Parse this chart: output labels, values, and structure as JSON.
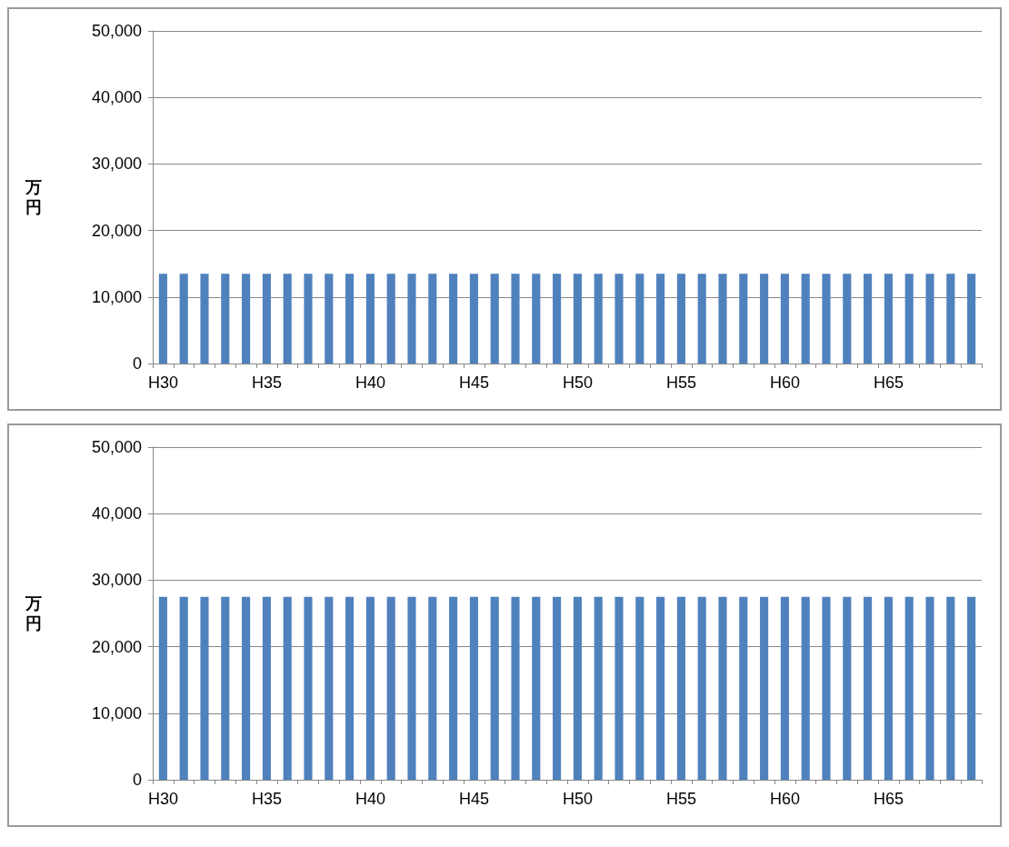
{
  "chart_data": [
    {
      "type": "bar",
      "ylabel": "万円",
      "categories": [
        "H30",
        null,
        null,
        null,
        null,
        "H35",
        null,
        null,
        null,
        null,
        "H40",
        null,
        null,
        null,
        null,
        "H45",
        null,
        null,
        null,
        null,
        "H50",
        null,
        null,
        null,
        null,
        "H55",
        null,
        null,
        null,
        null,
        "H60",
        null,
        null,
        null,
        null,
        "H65",
        null,
        null,
        null,
        null
      ],
      "values": [
        13500,
        13500,
        13500,
        13500,
        13500,
        13500,
        13500,
        13500,
        13500,
        13500,
        13500,
        13500,
        13500,
        13500,
        13500,
        13500,
        13500,
        13500,
        13500,
        13500,
        13500,
        13500,
        13500,
        13500,
        13500,
        13500,
        13500,
        13500,
        13500,
        13500,
        13500,
        13500,
        13500,
        13500,
        13500,
        13500,
        13500,
        13500,
        13500,
        13500
      ],
      "color": "#4f81bd",
      "ylim": [
        0,
        50000
      ],
      "yticks": [
        0,
        {
          "value": 10000,
          "label": "10,000"
        },
        {
          "value": 20000,
          "label": "20,000"
        },
        {
          "value": 30000,
          "label": "30,000"
        },
        {
          "value": 40000,
          "label": "40,000"
        },
        {
          "value": 50000,
          "label": "50,000"
        }
      ],
      "grid": "y"
    },
    {
      "type": "bar",
      "ylabel": "万円",
      "categories": [
        "H30",
        null,
        null,
        null,
        null,
        "H35",
        null,
        null,
        null,
        null,
        "H40",
        null,
        null,
        null,
        null,
        "H45",
        null,
        null,
        null,
        null,
        "H50",
        null,
        null,
        null,
        null,
        "H55",
        null,
        null,
        null,
        null,
        "H60",
        null,
        null,
        null,
        null,
        "H65",
        null,
        null,
        null,
        null
      ],
      "values": [
        27500,
        27500,
        27500,
        27500,
        27500,
        27500,
        27500,
        27500,
        27500,
        27500,
        27500,
        27500,
        27500,
        27500,
        27500,
        27500,
        27500,
        27500,
        27500,
        27500,
        27500,
        27500,
        27500,
        27500,
        27500,
        27500,
        27500,
        27500,
        27500,
        27500,
        27500,
        27500,
        27500,
        27500,
        27500,
        27500,
        27500,
        27500,
        27500,
        27500
      ],
      "color": "#4f81bd",
      "ylim": [
        0,
        50000
      ],
      "yticks": [
        0,
        {
          "value": 10000,
          "label": "10,000"
        },
        {
          "value": 20000,
          "label": "20,000"
        },
        {
          "value": 30000,
          "label": "30,000"
        },
        {
          "value": 40000,
          "label": "40,000"
        },
        {
          "value": 50000,
          "label": "50,000"
        }
      ],
      "grid": "y"
    }
  ]
}
